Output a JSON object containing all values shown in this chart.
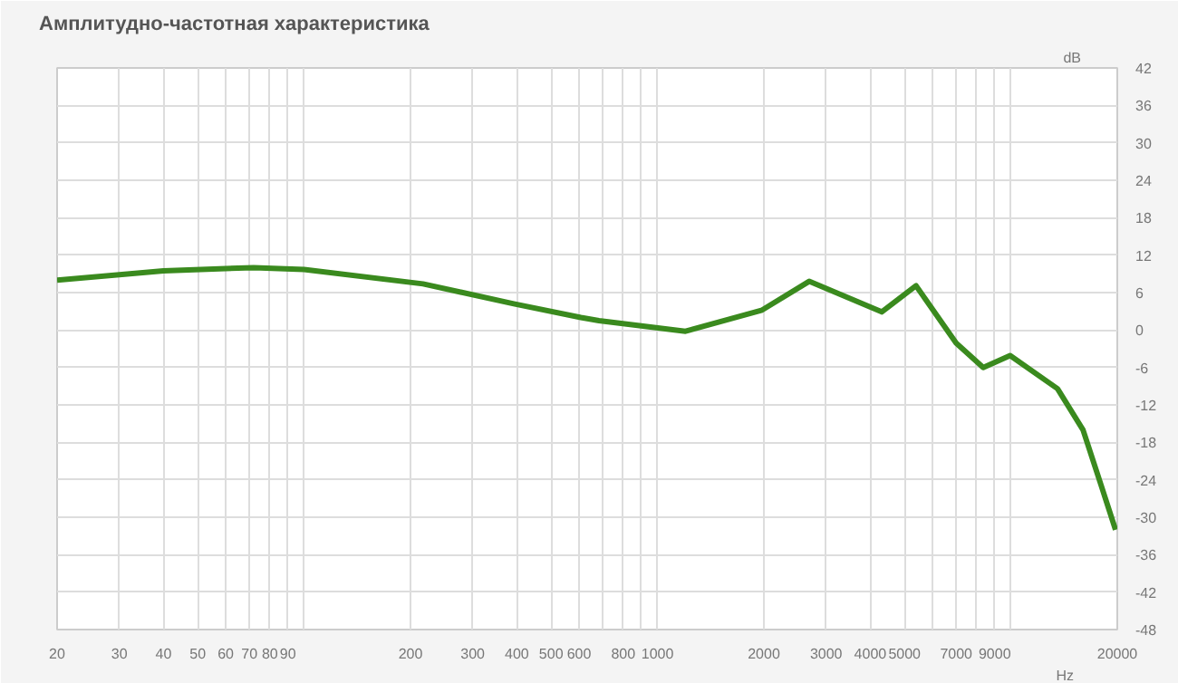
{
  "chart_data": {
    "type": "line",
    "title": "Амплитудно-частотная характеристика",
    "xlabel": "Hz",
    "ylabel": "dB",
    "log": "x",
    "grid": true,
    "xlim": [
      20,
      20000
    ],
    "ylim": [
      -48,
      42
    ],
    "xticks": [
      20,
      30,
      40,
      50,
      60,
      70,
      80,
      90,
      {
        "value": 100,
        "label": null
      },
      200,
      300,
      400,
      500,
      600,
      {
        "value": 700,
        "label": null
      },
      800,
      {
        "value": 900,
        "label": null
      },
      1000,
      2000,
      3000,
      4000,
      5000,
      {
        "value": 6000,
        "label": null
      },
      7000,
      {
        "value": 8000,
        "label": null
      },
      9000,
      {
        "value": 10000,
        "label": null
      },
      20000
    ],
    "yticks": [
      -48,
      -42,
      -36,
      -30,
      -24,
      -18,
      -12,
      -6,
      0,
      6,
      12,
      18,
      24,
      30,
      36,
      42
    ],
    "series": [
      {
        "color": "#3a8a1e",
        "x": [
          20,
          40,
          72,
          100,
          217,
          392,
          607,
          683,
          1200,
          1977,
          2686,
          4310,
          5390,
          7000,
          8350,
          9950,
          13550,
          16000,
          17980,
          19770
        ],
        "values": [
          8.0,
          9.5,
          10.0,
          9.7,
          7.4,
          4.2,
          2.0,
          1.5,
          -0.2,
          3.2,
          7.8,
          2.9,
          7.1,
          -2.1,
          -6.0,
          -4.1,
          -9.4,
          -16.0,
          -24.8,
          -32.0
        ]
      }
    ]
  }
}
